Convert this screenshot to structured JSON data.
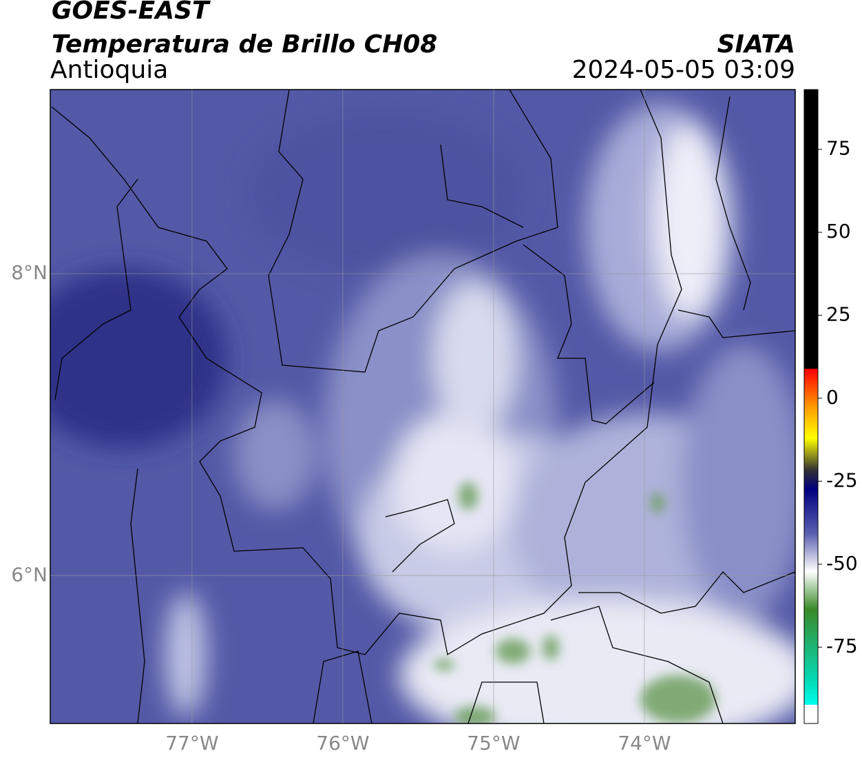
{
  "chart_data": {
    "type": "map",
    "title": "GOES-EAST",
    "subtitle": "Temperatura de Brillo CH08",
    "region": "Antioquia",
    "source": "SIATA",
    "timestamp": "2024-05-05 03:09",
    "xlim": [
      -77.94,
      -73.0
    ],
    "ylim": [
      5.02,
      9.22
    ],
    "xticks": [
      {
        "value": -77,
        "label": "77°W"
      },
      {
        "value": -76,
        "label": "76°W"
      },
      {
        "value": -75,
        "label": "75°W"
      },
      {
        "value": -74,
        "label": "74°W"
      }
    ],
    "yticks": [
      {
        "value": 6,
        "label": "6°N"
      },
      {
        "value": 8,
        "label": "8°N"
      }
    ],
    "grid": true,
    "colorbar": {
      "clim": [
        -98,
        93
      ],
      "ticks": [
        75,
        50,
        25,
        0,
        -25,
        -50,
        -75
      ]
    }
  }
}
